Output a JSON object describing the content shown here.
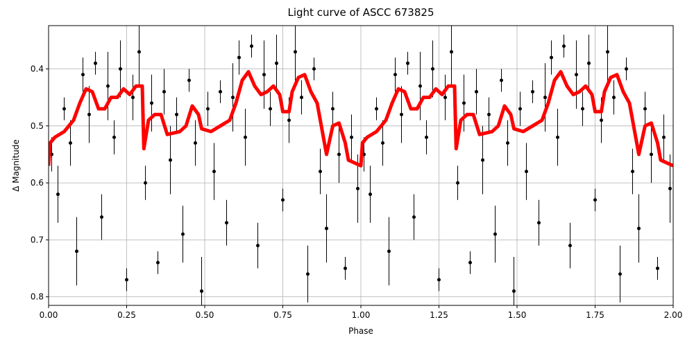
{
  "chart_data": {
    "type": "scatter",
    "title": "Light curve of ASCC 673825",
    "x_label": "Phase",
    "y_label": "Δ Magnitude",
    "xlim": [
      0,
      2
    ],
    "ylim": [
      0.815,
      0.324
    ],
    "xticks": [
      {
        "value": 0,
        "label": "0.00"
      },
      {
        "value": 0.25,
        "label": "0.25"
      },
      {
        "value": 0.5,
        "label": "0.50"
      },
      {
        "value": 0.75,
        "label": "0.75"
      },
      {
        "value": 1,
        "label": "1.00"
      },
      {
        "value": 1.25,
        "label": "1.25"
      },
      {
        "value": 1.5,
        "label": "1.50"
      },
      {
        "value": 1.75,
        "label": "1.75"
      },
      {
        "value": 2,
        "label": "2.00"
      }
    ],
    "yticks": [
      0.4,
      0.5,
      0.6,
      0.7,
      0.8
    ],
    "grid": true,
    "series": [
      {
        "type": "errorbar",
        "color": "#000000",
        "x": [
          0.01,
          0.03,
          0.05,
          0.07,
          0.09,
          0.11,
          0.13,
          0.15,
          0.17,
          0.19,
          0.21,
          0.23,
          0.25,
          0.27,
          0.29,
          0.31,
          0.33,
          0.35,
          0.37,
          0.39,
          0.41,
          0.43,
          0.45,
          0.47,
          0.49,
          0.51,
          0.53,
          0.55,
          0.57,
          0.59,
          0.61,
          0.63,
          0.65,
          0.67,
          0.69,
          0.71,
          0.73,
          0.75,
          0.77,
          0.79,
          0.81,
          0.83,
          0.85,
          0.87,
          0.89,
          0.91,
          0.93,
          0.95,
          0.97,
          0.99,
          1.01,
          1.03,
          1.05,
          1.07,
          1.09,
          1.11,
          1.13,
          1.15,
          1.17,
          1.19,
          1.21,
          1.23,
          1.25,
          1.27,
          1.29,
          1.31,
          1.33,
          1.35,
          1.37,
          1.39,
          1.41,
          1.43,
          1.45,
          1.47,
          1.49,
          1.51,
          1.53,
          1.55,
          1.57,
          1.59,
          1.61,
          1.63,
          1.65,
          1.67,
          1.69,
          1.71,
          1.73,
          1.75,
          1.77,
          1.79,
          1.81,
          1.83,
          1.85,
          1.87,
          1.89,
          1.91,
          1.93,
          1.95,
          1.97,
          1.99
        ],
        "values": [
          0.55,
          0.62,
          0.47,
          0.53,
          0.72,
          0.41,
          0.48,
          0.39,
          0.66,
          0.43,
          0.52,
          0.4,
          0.77,
          0.45,
          0.37,
          0.6,
          0.46,
          0.74,
          0.44,
          0.56,
          0.48,
          0.69,
          0.42,
          0.53,
          0.79,
          0.47,
          0.58,
          0.44,
          0.67,
          0.45,
          0.38,
          0.52,
          0.36,
          0.71,
          0.41,
          0.47,
          0.39,
          0.63,
          0.49,
          0.37,
          0.45,
          0.76,
          0.4,
          0.58,
          0.68,
          0.47,
          0.55,
          0.75,
          0.52,
          0.61,
          0.55,
          0.62,
          0.47,
          0.53,
          0.72,
          0.41,
          0.48,
          0.39,
          0.66,
          0.43,
          0.52,
          0.4,
          0.77,
          0.45,
          0.37,
          0.6,
          0.46,
          0.74,
          0.44,
          0.56,
          0.48,
          0.69,
          0.42,
          0.53,
          0.79,
          0.47,
          0.58,
          0.44,
          0.67,
          0.45,
          0.38,
          0.52,
          0.36,
          0.71,
          0.41,
          0.47,
          0.39,
          0.63,
          0.49,
          0.37,
          0.45,
          0.76,
          0.4,
          0.58,
          0.68,
          0.47,
          0.55,
          0.75,
          0.52,
          0.61
        ],
        "errors": [
          0.03,
          0.05,
          0.02,
          0.04,
          0.06,
          0.03,
          0.05,
          0.02,
          0.04,
          0.06,
          0.03,
          0.05,
          0.02,
          0.04,
          0.06,
          0.03,
          0.05,
          0.02,
          0.04,
          0.06,
          0.03,
          0.05,
          0.02,
          0.04,
          0.06,
          0.03,
          0.05,
          0.02,
          0.04,
          0.06,
          0.03,
          0.05,
          0.02,
          0.04,
          0.06,
          0.03,
          0.05,
          0.02,
          0.04,
          0.06,
          0.03,
          0.05,
          0.02,
          0.04,
          0.06,
          0.03,
          0.05,
          0.02,
          0.04,
          0.06,
          0.03,
          0.05,
          0.02,
          0.04,
          0.06,
          0.03,
          0.05,
          0.02,
          0.04,
          0.06,
          0.03,
          0.05,
          0.02,
          0.04,
          0.06,
          0.03,
          0.05,
          0.02,
          0.04,
          0.06,
          0.03,
          0.05,
          0.02,
          0.04,
          0.06,
          0.03,
          0.05,
          0.02,
          0.04,
          0.06,
          0.03,
          0.05,
          0.02,
          0.04,
          0.06,
          0.03,
          0.05,
          0.02,
          0.04,
          0.06,
          0.03,
          0.05,
          0.02,
          0.04,
          0.06,
          0.03,
          0.05,
          0.02,
          0.04,
          0.06
        ]
      },
      {
        "type": "line",
        "color": "#ff0000",
        "x": [
          0,
          0.005,
          0.02,
          0.05,
          0.08,
          0.1,
          0.12,
          0.14,
          0.16,
          0.18,
          0.2,
          0.22,
          0.24,
          0.26,
          0.28,
          0.3,
          0.305,
          0.32,
          0.34,
          0.36,
          0.38,
          0.42,
          0.44,
          0.46,
          0.48,
          0.49,
          0.52,
          0.55,
          0.58,
          0.6,
          0.62,
          0.64,
          0.66,
          0.68,
          0.7,
          0.72,
          0.74,
          0.75,
          0.77,
          0.78,
          0.8,
          0.82,
          0.84,
          0.86,
          0.88,
          0.89,
          0.91,
          0.93,
          0.95,
          0.96,
          0.98,
          1.0,
          1.005,
          1.02,
          1.05,
          1.08,
          1.1,
          1.12,
          1.14,
          1.16,
          1.18,
          1.2,
          1.22,
          1.24,
          1.26,
          1.28,
          1.3,
          1.305,
          1.32,
          1.34,
          1.36,
          1.38,
          1.42,
          1.44,
          1.46,
          1.48,
          1.49,
          1.52,
          1.55,
          1.58,
          1.6,
          1.62,
          1.64,
          1.66,
          1.68,
          1.7,
          1.72,
          1.74,
          1.75,
          1.77,
          1.78,
          1.8,
          1.82,
          1.84,
          1.86,
          1.88,
          1.89,
          1.91,
          1.93,
          1.95,
          1.96,
          1.98,
          2.0
        ],
        "values": [
          0.57,
          0.53,
          0.52,
          0.51,
          0.49,
          0.46,
          0.435,
          0.44,
          0.47,
          0.47,
          0.45,
          0.45,
          0.435,
          0.445,
          0.43,
          0.43,
          0.54,
          0.49,
          0.48,
          0.48,
          0.515,
          0.51,
          0.5,
          0.465,
          0.48,
          0.505,
          0.51,
          0.5,
          0.49,
          0.46,
          0.42,
          0.405,
          0.43,
          0.445,
          0.44,
          0.43,
          0.445,
          0.475,
          0.475,
          0.44,
          0.415,
          0.41,
          0.44,
          0.46,
          0.52,
          0.55,
          0.5,
          0.495,
          0.53,
          0.56,
          0.565,
          0.57,
          0.53,
          0.52,
          0.51,
          0.49,
          0.46,
          0.435,
          0.44,
          0.47,
          0.47,
          0.45,
          0.45,
          0.435,
          0.445,
          0.43,
          0.43,
          0.54,
          0.49,
          0.48,
          0.48,
          0.515,
          0.51,
          0.5,
          0.465,
          0.48,
          0.505,
          0.51,
          0.5,
          0.49,
          0.46,
          0.42,
          0.405,
          0.43,
          0.445,
          0.44,
          0.43,
          0.445,
          0.475,
          0.475,
          0.44,
          0.415,
          0.41,
          0.44,
          0.46,
          0.52,
          0.55,
          0.5,
          0.495,
          0.53,
          0.56,
          0.565,
          0.57
        ]
      }
    ]
  }
}
